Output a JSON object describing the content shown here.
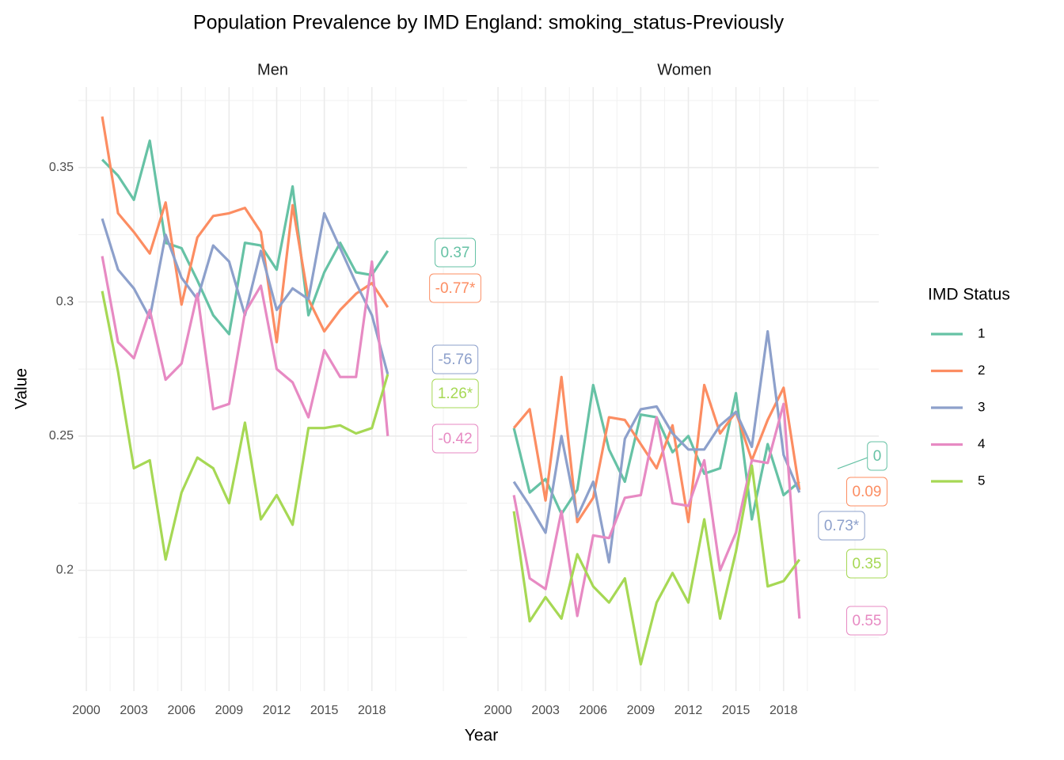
{
  "title": "Population Prevalence by IMD England: smoking_status-Previously",
  "x_label": "Year",
  "y_label": "Value",
  "legend_title": "IMD Status",
  "chart_data": [
    {
      "type": "line",
      "title": "Men",
      "x": [
        2001,
        2002,
        2003,
        2004,
        2005,
        2006,
        2007,
        2008,
        2009,
        2010,
        2011,
        2012,
        2013,
        2014,
        2015,
        2016,
        2017,
        2018,
        2019
      ],
      "xlim": [
        1999.5,
        2024
      ],
      "ylim": [
        0.155,
        0.38
      ],
      "xticks": [
        2000,
        2003,
        2006,
        2009,
        2012,
        2015,
        2018
      ],
      "yticks": [
        0.2,
        0.25,
        0.3,
        0.35
      ],
      "grid": true,
      "series": [
        {
          "name": "1",
          "color": "#66c2a5",
          "annotation": "0.37",
          "values": [
            0.353,
            0.347,
            0.338,
            0.36,
            0.322,
            0.32,
            0.308,
            0.295,
            0.288,
            0.322,
            0.321,
            0.312,
            0.343,
            0.295,
            0.311,
            0.322,
            0.311,
            0.31,
            0.319
          ]
        },
        {
          "name": "2",
          "color": "#fc8d62",
          "annotation": "-0.77*",
          "values": [
            0.369,
            0.333,
            0.326,
            0.318,
            0.337,
            0.299,
            0.324,
            0.332,
            0.333,
            0.335,
            0.326,
            0.285,
            0.336,
            0.301,
            0.289,
            0.297,
            0.303,
            0.307,
            0.298
          ]
        },
        {
          "name": "3",
          "color": "#8da0cb",
          "annotation": "-5.76",
          "values": [
            0.331,
            0.312,
            0.305,
            0.294,
            0.325,
            0.309,
            0.301,
            0.321,
            0.315,
            0.295,
            0.319,
            0.297,
            0.305,
            0.301,
            0.333,
            0.32,
            0.307,
            0.295,
            0.273
          ]
        },
        {
          "name": "4",
          "color": "#e78ac3",
          "annotation": "-0.42",
          "values": [
            0.317,
            0.285,
            0.279,
            0.297,
            0.271,
            0.277,
            0.303,
            0.26,
            0.262,
            0.296,
            0.306,
            0.275,
            0.27,
            0.257,
            0.282,
            0.272,
            0.272,
            0.315,
            0.25
          ]
        },
        {
          "name": "5",
          "color": "#a6d854",
          "annotation": "1.26*",
          "values": [
            0.304,
            0.274,
            0.238,
            0.241,
            0.204,
            0.229,
            0.242,
            0.238,
            0.225,
            0.255,
            0.219,
            0.228,
            0.217,
            0.253,
            0.253,
            0.254,
            0.251,
            0.253,
            0.273
          ]
        }
      ]
    },
    {
      "type": "line",
      "title": "Women",
      "x": [
        2001,
        2002,
        2003,
        2004,
        2005,
        2006,
        2007,
        2008,
        2009,
        2010,
        2011,
        2012,
        2013,
        2014,
        2015,
        2016,
        2017,
        2018,
        2019
      ],
      "xlim": [
        1999.5,
        2024
      ],
      "ylim": [
        0.155,
        0.38
      ],
      "xticks": [
        2000,
        2003,
        2006,
        2009,
        2012,
        2015,
        2018
      ],
      "yticks": [
        0.2,
        0.25,
        0.3,
        0.35
      ],
      "grid": true,
      "series": [
        {
          "name": "1",
          "color": "#66c2a5",
          "annotation": "0",
          "values": [
            0.253,
            0.229,
            0.234,
            0.221,
            0.23,
            0.269,
            0.245,
            0.233,
            0.258,
            0.257,
            0.244,
            0.25,
            0.236,
            0.238,
            0.266,
            0.219,
            0.247,
            0.228,
            0.233
          ]
        },
        {
          "name": "2",
          "color": "#fc8d62",
          "annotation": "0.09",
          "values": [
            0.253,
            0.26,
            0.226,
            0.272,
            0.218,
            0.227,
            0.257,
            0.256,
            0.247,
            0.238,
            0.254,
            0.218,
            0.269,
            0.251,
            0.259,
            0.241,
            0.256,
            0.268,
            0.23
          ]
        },
        {
          "name": "3",
          "color": "#8da0cb",
          "annotation": "0.73*",
          "values": [
            0.233,
            0.224,
            0.214,
            0.25,
            0.22,
            0.233,
            0.203,
            0.249,
            0.26,
            0.261,
            0.251,
            0.245,
            0.245,
            0.254,
            0.259,
            0.246,
            0.289,
            0.243,
            0.229
          ]
        },
        {
          "name": "4",
          "color": "#e78ac3",
          "annotation": "0.55",
          "values": [
            0.228,
            0.197,
            0.193,
            0.222,
            0.183,
            0.213,
            0.212,
            0.227,
            0.228,
            0.257,
            0.225,
            0.224,
            0.241,
            0.2,
            0.214,
            0.241,
            0.24,
            0.262,
            0.182
          ]
        },
        {
          "name": "5",
          "color": "#a6d854",
          "annotation": "0.35",
          "values": [
            0.222,
            0.181,
            0.19,
            0.182,
            0.206,
            0.194,
            0.188,
            0.197,
            0.165,
            0.188,
            0.199,
            0.188,
            0.219,
            0.182,
            0.207,
            0.239,
            0.194,
            0.196,
            0.204
          ]
        }
      ]
    }
  ]
}
